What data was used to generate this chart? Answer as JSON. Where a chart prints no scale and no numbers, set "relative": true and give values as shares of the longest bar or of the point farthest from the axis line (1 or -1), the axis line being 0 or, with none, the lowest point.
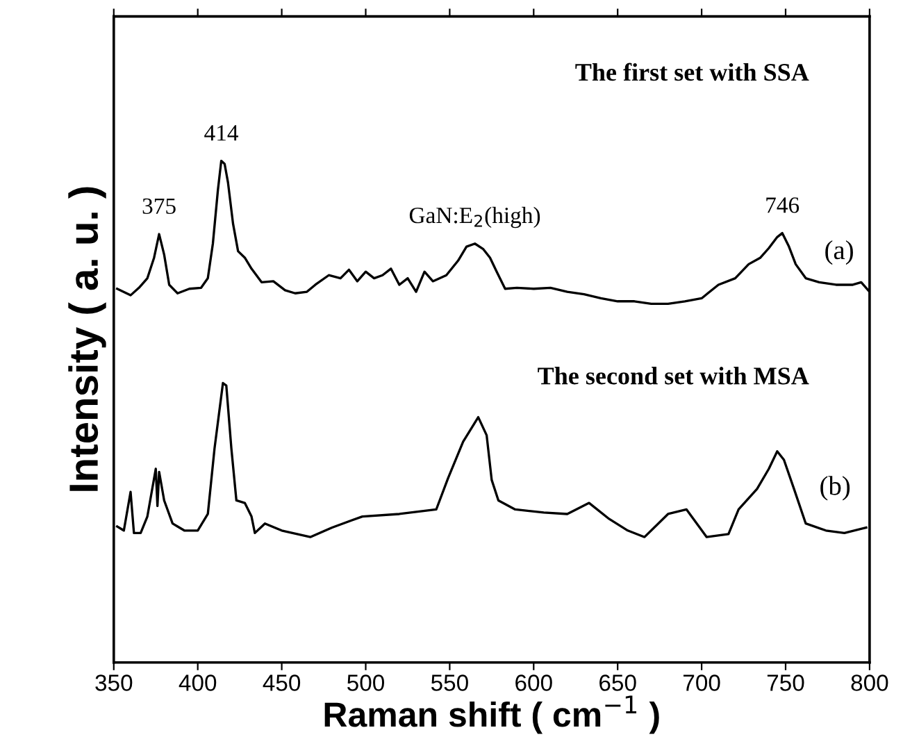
{
  "chart_data": {
    "type": "line",
    "relative": true,
    "xlabel": "Raman shift ( cm$^{−1}$ )",
    "ylabel": "Intensity ( a. u. )",
    "xlim": [
      350,
      800
    ],
    "xticks": [
      350,
      400,
      450,
      500,
      550,
      600,
      650,
      700,
      750,
      800
    ],
    "grid": false,
    "legend": false,
    "marker": "none",
    "line_style": "solid",
    "series": [
      {
        "name": "(a)",
        "color": "#000000",
        "x": [
          352,
          360,
          365,
          370,
          374,
          377,
          380,
          383,
          388,
          395,
          402,
          406,
          409,
          412,
          414,
          416,
          418,
          421,
          424,
          428,
          432,
          438,
          445,
          452,
          458,
          465,
          470,
          478,
          485,
          490,
          495,
          500,
          505,
          510,
          515,
          520,
          525,
          530,
          535,
          540,
          548,
          555,
          560,
          565,
          570,
          574,
          578,
          583,
          590,
          600,
          610,
          620,
          630,
          640,
          650,
          660,
          670,
          680,
          690,
          700,
          710,
          720,
          728,
          735,
          740,
          745,
          748,
          752,
          756,
          762,
          770,
          780,
          790,
          795,
          800
        ],
        "values": [
          0.745,
          0.732,
          0.747,
          0.766,
          0.807,
          0.854,
          0.813,
          0.753,
          0.736,
          0.745,
          0.747,
          0.766,
          0.835,
          0.942,
          1.0,
          0.994,
          0.957,
          0.875,
          0.82,
          0.807,
          0.785,
          0.758,
          0.76,
          0.742,
          0.736,
          0.739,
          0.753,
          0.772,
          0.766,
          0.783,
          0.76,
          0.779,
          0.766,
          0.772,
          0.785,
          0.753,
          0.766,
          0.739,
          0.779,
          0.76,
          0.772,
          0.801,
          0.829,
          0.835,
          0.824,
          0.807,
          0.779,
          0.745,
          0.747,
          0.745,
          0.747,
          0.739,
          0.734,
          0.726,
          0.72,
          0.72,
          0.715,
          0.715,
          0.72,
          0.726,
          0.753,
          0.766,
          0.794,
          0.807,
          0.826,
          0.848,
          0.856,
          0.829,
          0.794,
          0.766,
          0.758,
          0.753,
          0.753,
          0.758,
          0.739
        ]
      },
      {
        "name": "(b)",
        "color": "#000000",
        "x": [
          352,
          356,
          360,
          362,
          366,
          370,
          375,
          376,
          377,
          380,
          385,
          392,
          400,
          406,
          410,
          415,
          417,
          420,
          423,
          428,
          432,
          434,
          440,
          450,
          467,
          480,
          498,
          520,
          542,
          549,
          558,
          567,
          572,
          575,
          579,
          589,
          606,
          620,
          633,
          645,
          656,
          666,
          680,
          691,
          703,
          716,
          722,
          733,
          740,
          745,
          749,
          755,
          762,
          774,
          785,
          798
        ],
        "values": [
          0.271,
          0.263,
          0.34,
          0.258,
          0.258,
          0.291,
          0.386,
          0.312,
          0.38,
          0.323,
          0.277,
          0.263,
          0.263,
          0.296,
          0.427,
          0.557,
          0.552,
          0.427,
          0.323,
          0.318,
          0.291,
          0.258,
          0.277,
          0.263,
          0.25,
          0.269,
          0.291,
          0.296,
          0.305,
          0.367,
          0.44,
          0.489,
          0.453,
          0.364,
          0.323,
          0.305,
          0.299,
          0.296,
          0.318,
          0.286,
          0.263,
          0.25,
          0.296,
          0.305,
          0.25,
          0.256,
          0.305,
          0.346,
          0.386,
          0.421,
          0.404,
          0.346,
          0.277,
          0.263,
          0.258,
          0.269
        ]
      }
    ],
    "annotations": [
      {
        "text": "375",
        "x": 377,
        "y": 0.854
      },
      {
        "text": "414",
        "x": 414,
        "y": 1.0
      },
      {
        "text": "GaN:E$_{2}$(high)",
        "x": 565,
        "y": 0.835
      },
      {
        "text": "746",
        "x": 748,
        "y": 0.856
      },
      "The first set with SSA",
      "The second set with MSA"
    ]
  }
}
